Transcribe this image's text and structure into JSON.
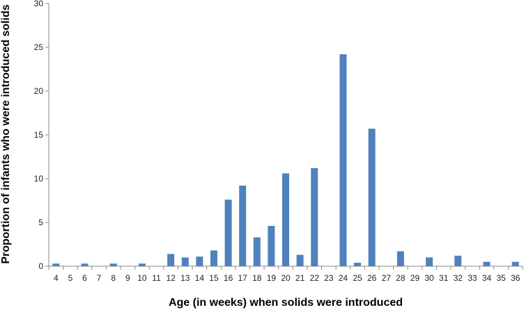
{
  "chart_data": {
    "type": "bar",
    "title": "",
    "xlabel": "Age (in weeks) when solids were introduced",
    "ylabel": "Proportion of infants who were introduced solids",
    "ylim": [
      0,
      30
    ],
    "yticks": [
      0,
      5,
      10,
      15,
      20,
      25,
      30
    ],
    "grid": false,
    "legend": "none",
    "bar_color": "#4f81bd",
    "axis_color": "#888888",
    "categories": [
      "4",
      "5",
      "6",
      "7",
      "8",
      "9",
      "10",
      "11",
      "12",
      "13",
      "14",
      "15",
      "16",
      "17",
      "18",
      "19",
      "20",
      "21",
      "22",
      "23",
      "24",
      "25",
      "26",
      "27",
      "28",
      "29",
      "30",
      "31",
      "32",
      "33",
      "34",
      "35",
      "36"
    ],
    "values": [
      0.3,
      0,
      0.3,
      0,
      0.3,
      0,
      0.3,
      0,
      1.4,
      1.0,
      1.1,
      1.8,
      7.6,
      9.2,
      3.3,
      4.6,
      10.6,
      1.3,
      11.2,
      0,
      24.2,
      0.4,
      15.7,
      0,
      1.7,
      0,
      1.0,
      0,
      1.2,
      0,
      0.5,
      0,
      0.5
    ]
  }
}
